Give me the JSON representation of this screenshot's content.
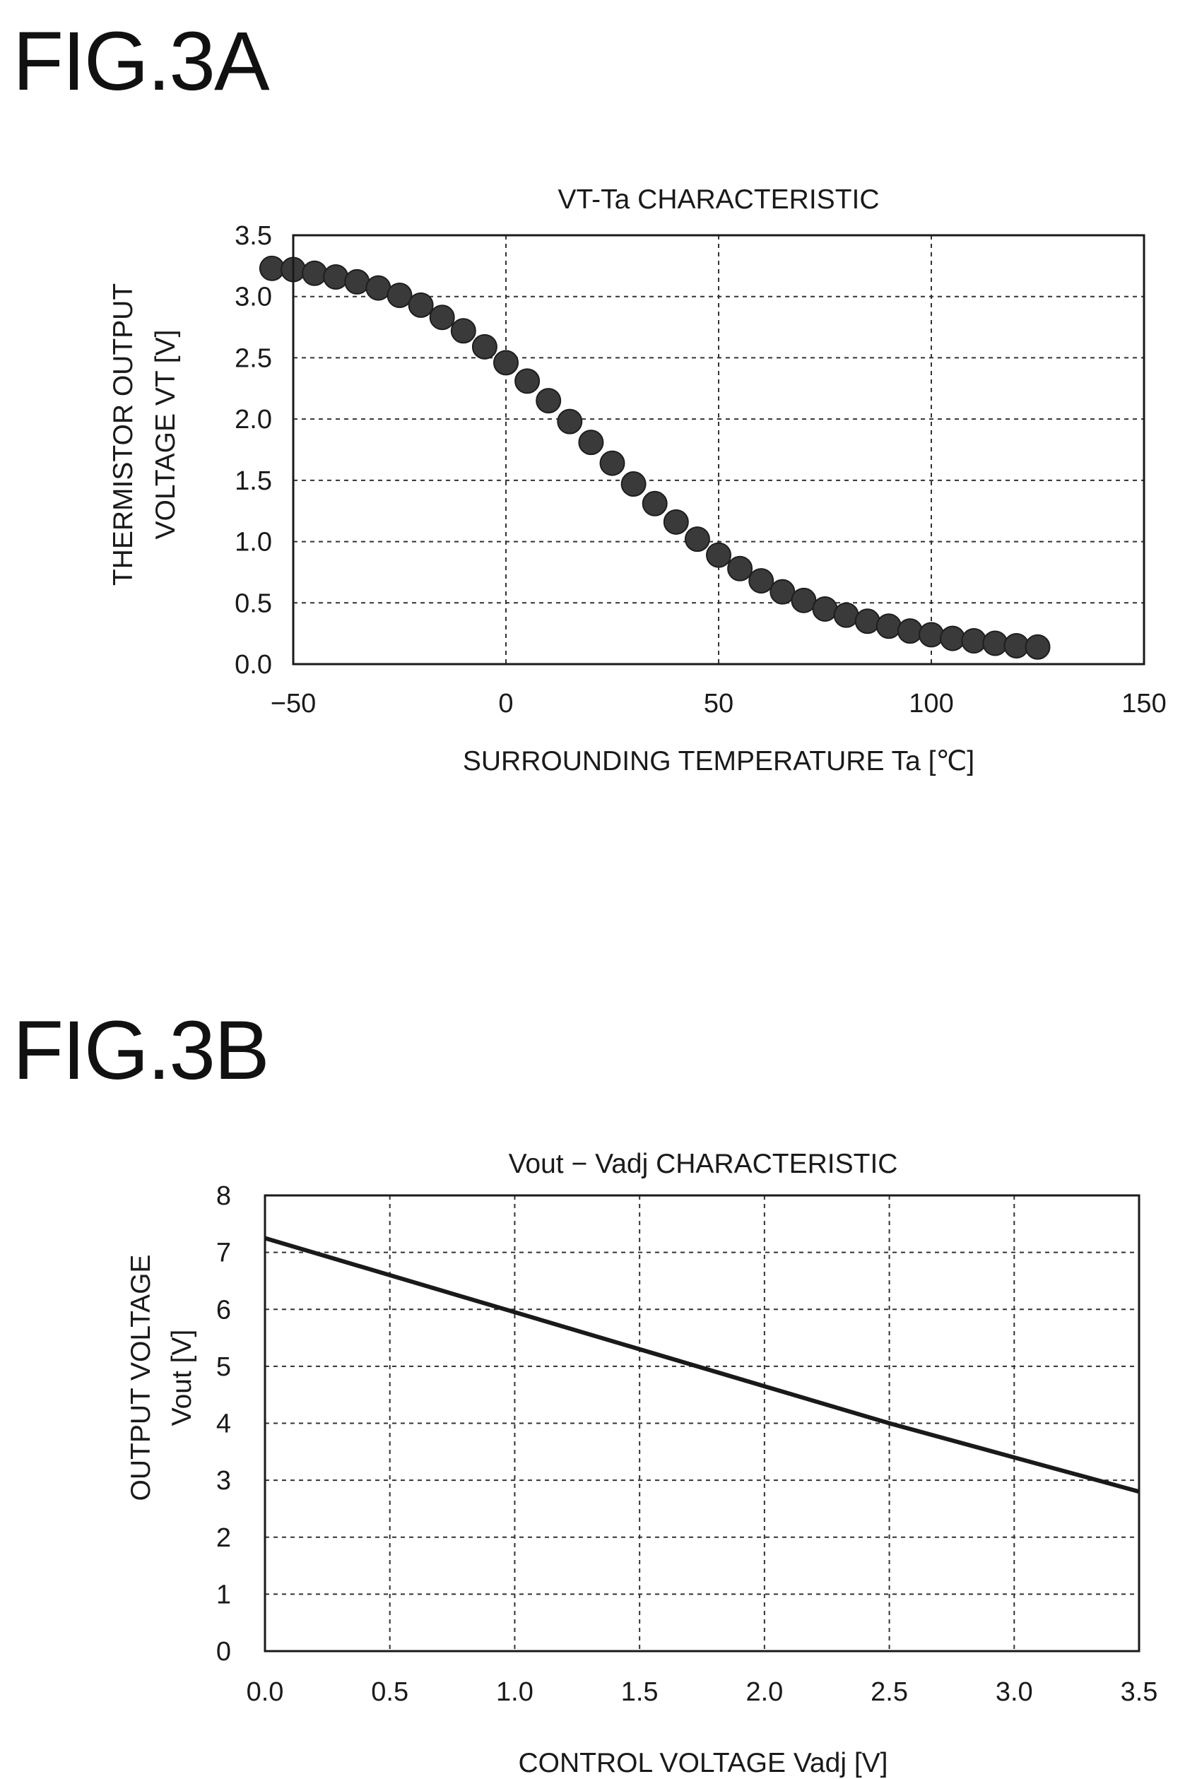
{
  "figures": {
    "a": {
      "label": "FIG.3A"
    },
    "b": {
      "label": "FIG.3B"
    }
  },
  "chart_data": [
    {
      "type": "scatter",
      "title": "VT-Ta CHARACTERISTIC",
      "xlabel": "SURROUNDING TEMPERATURE   Ta [℃]",
      "ylabel_lines": [
        "THERMISTOR OUTPUT",
        "VOLTAGE VT [V]"
      ],
      "xlim": [
        -50,
        150
      ],
      "ylim": [
        0,
        3.5
      ],
      "xticks": [
        "−50",
        "0",
        "50",
        "100",
        "150"
      ],
      "yticks": [
        "0.0",
        "0.5",
        "1.0",
        "1.5",
        "2.0",
        "2.5",
        "3.0",
        "3.5"
      ],
      "xtick_values": [
        -50,
        0,
        50,
        100,
        150
      ],
      "ytick_values": [
        0,
        0.5,
        1.0,
        1.5,
        2.0,
        2.5,
        3.0,
        3.5
      ],
      "grid": true,
      "marker_color": "#3a3a3a",
      "points": [
        [
          -55,
          3.23
        ],
        [
          -50,
          3.22
        ],
        [
          -45,
          3.19
        ],
        [
          -40,
          3.16
        ],
        [
          -35,
          3.12
        ],
        [
          -30,
          3.07
        ],
        [
          -25,
          3.01
        ],
        [
          -20,
          2.93
        ],
        [
          -15,
          2.83
        ],
        [
          -10,
          2.72
        ],
        [
          -5,
          2.59
        ],
        [
          0,
          2.46
        ],
        [
          5,
          2.31
        ],
        [
          10,
          2.15
        ],
        [
          15,
          1.98
        ],
        [
          20,
          1.81
        ],
        [
          25,
          1.64
        ],
        [
          30,
          1.47
        ],
        [
          35,
          1.31
        ],
        [
          40,
          1.16
        ],
        [
          45,
          1.02
        ],
        [
          50,
          0.89
        ],
        [
          55,
          0.78
        ],
        [
          60,
          0.68
        ],
        [
          65,
          0.59
        ],
        [
          70,
          0.52
        ],
        [
          75,
          0.45
        ],
        [
          80,
          0.4
        ],
        [
          85,
          0.35
        ],
        [
          90,
          0.31
        ],
        [
          95,
          0.27
        ],
        [
          100,
          0.24
        ],
        [
          105,
          0.21
        ],
        [
          110,
          0.19
        ],
        [
          115,
          0.17
        ],
        [
          120,
          0.15
        ],
        [
          125,
          0.14
        ]
      ]
    },
    {
      "type": "line",
      "title": "Vout − Vadj CHARACTERISTIC",
      "xlabel": "CONTROL VOLTAGE Vadj [V]",
      "ylabel_lines": [
        "OUTPUT VOLTAGE",
        "Vout [V]"
      ],
      "xlim": [
        0,
        3.5
      ],
      "ylim": [
        0,
        8
      ],
      "xticks": [
        "0.0",
        "0.5",
        "1.0",
        "1.5",
        "2.0",
        "2.5",
        "3.0",
        "3.5"
      ],
      "yticks": [
        "0",
        "1",
        "2",
        "3",
        "4",
        "5",
        "6",
        "7",
        "8"
      ],
      "xtick_values": [
        0,
        0.5,
        1.0,
        1.5,
        2.0,
        2.5,
        3.0,
        3.5
      ],
      "ytick_values": [
        0,
        1,
        2,
        3,
        4,
        5,
        6,
        7,
        8
      ],
      "grid": true,
      "line_color": "#1a1a1a",
      "x": [
        0.0,
        0.5,
        1.0,
        1.5,
        2.0,
        2.5,
        3.0,
        3.5
      ],
      "y": [
        7.25,
        6.6,
        5.95,
        5.3,
        4.65,
        4.0,
        3.4,
        2.8
      ]
    }
  ]
}
